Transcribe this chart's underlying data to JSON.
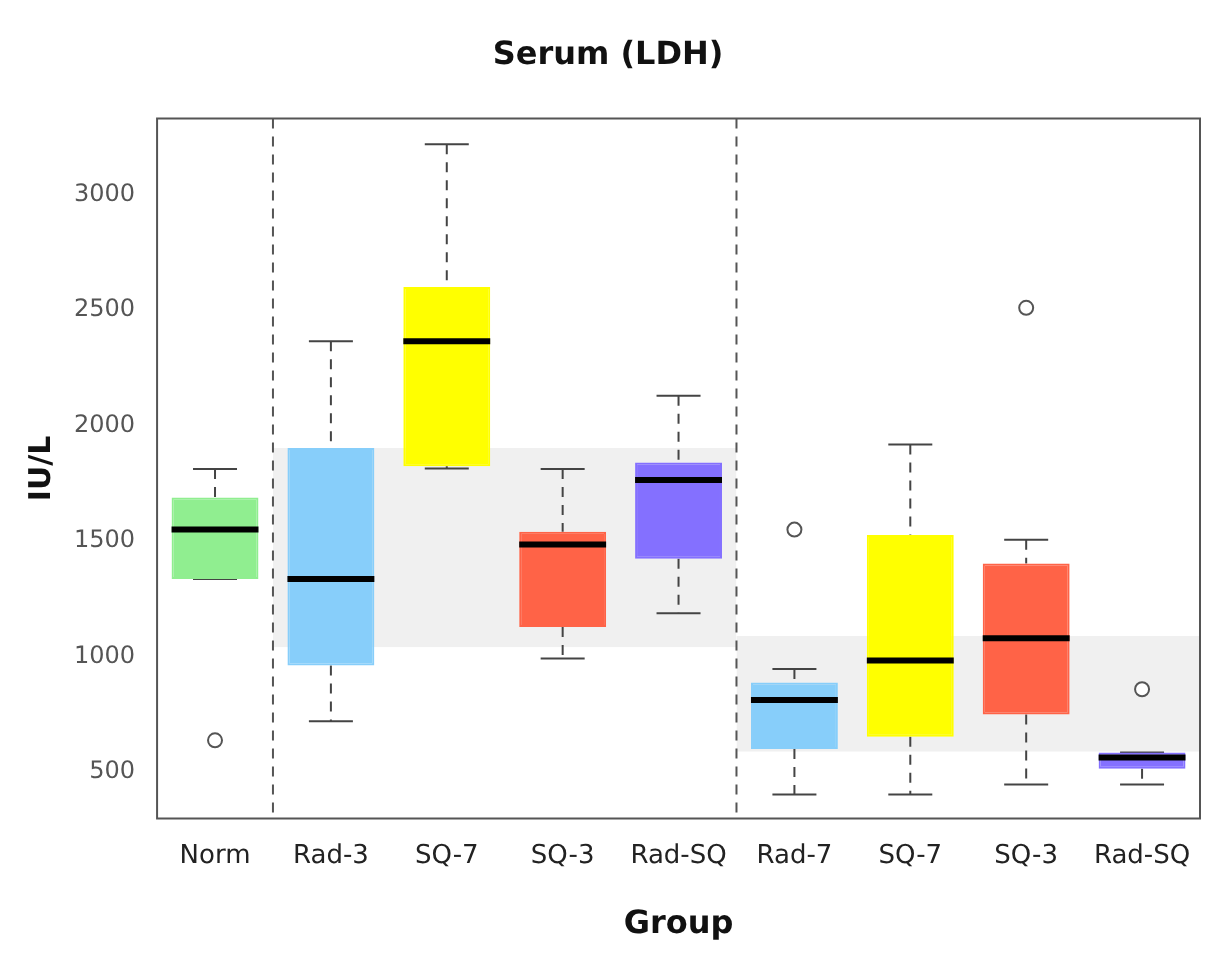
{
  "chart_data": {
    "type": "box",
    "title": "Serum (LDH)",
    "xlabel": "Group",
    "ylabel": "IU/L",
    "categories": [
      "Norm",
      "Rad-3",
      "SQ-7",
      "SQ-3",
      "Rad-SQ",
      "Rad-7",
      "SQ-7",
      "SQ-3",
      "Rad-SQ"
    ],
    "colors": [
      "#90ee90",
      "#87cefa",
      "#ffff00",
      "#ff6347",
      "#8470ff",
      "#87cefa",
      "#ffff00",
      "#ff6347",
      "#8470ff"
    ],
    "boxes": [
      {
        "low": 1336,
        "q1": 1336,
        "median": 1550,
        "q3": 1689,
        "high": 1812,
        "outliers": [
          638
        ]
      },
      {
        "low": 721,
        "q1": 962,
        "median": 1336,
        "q3": 1903,
        "high": 2365
      },
      {
        "low": 1815,
        "q1": 1824,
        "median": 2365,
        "q3": 2600,
        "high": 3218
      },
      {
        "low": 992,
        "q1": 1129,
        "median": 1486,
        "q3": 1541,
        "high": 1812
      },
      {
        "low": 1188,
        "q1": 1424,
        "median": 1765,
        "q3": 1841,
        "high": 2130
      },
      {
        "low": 403,
        "q1": 600,
        "median": 812,
        "q3": 888,
        "high": 947,
        "outliers": [
          1550
        ]
      },
      {
        "low": 403,
        "q1": 653,
        "median": 983,
        "q3": 1527,
        "high": 1918
      },
      {
        "low": 447,
        "q1": 750,
        "median": 1080,
        "q3": 1403,
        "high": 1506,
        "outliers": [
          2510
        ]
      },
      {
        "low": 447,
        "q1": 515,
        "median": 564,
        "q3": 585,
        "high": 585,
        "outliers": [
          859
        ]
      }
    ],
    "ylim": [
      300,
      3330
    ],
    "yticks": [
      500,
      1000,
      1500,
      2000,
      2500,
      3000
    ],
    "bands": [
      {
        "axis": "y",
        "from": 1041,
        "to": 1903,
        "color": "#dddddd"
      },
      {
        "axis": "y",
        "from": 588,
        "to": 1089,
        "color": "#dddddd"
      }
    ],
    "marker": "circle"
  }
}
